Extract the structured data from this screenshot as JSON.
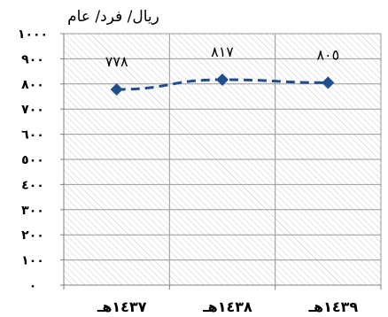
{
  "chart_data": {
    "type": "line",
    "ylabel": "ريال/ فرد/ عام",
    "categories": [
      "١٤٣٧هـ",
      "١٤٣٨هـ",
      "١٤٣٩هـ"
    ],
    "series": [
      {
        "values": [
          778,
          817,
          805
        ],
        "data_labels": [
          "٧٧٨",
          "٨١٧",
          "٨٠٥"
        ]
      }
    ],
    "ylim": [
      0,
      1000
    ],
    "yticks": [
      0,
      100,
      200,
      300,
      400,
      500,
      600,
      700,
      800,
      900,
      1000
    ],
    "ytick_labels": [
      "٠",
      "١٠٠",
      "٢٠٠",
      "٣٠٠",
      "٤٠٠",
      "٥٠٠",
      "٦٠٠",
      "٧٠٠",
      "٨٠٠",
      "٩٠٠",
      "١٠٠٠"
    ],
    "grid": true,
    "marker": "diamond",
    "line_style": "dashed",
    "colors": {
      "series": "#1f4e8c",
      "grid": "#9a9a9a",
      "hatch": "#c8c8c8"
    }
  }
}
